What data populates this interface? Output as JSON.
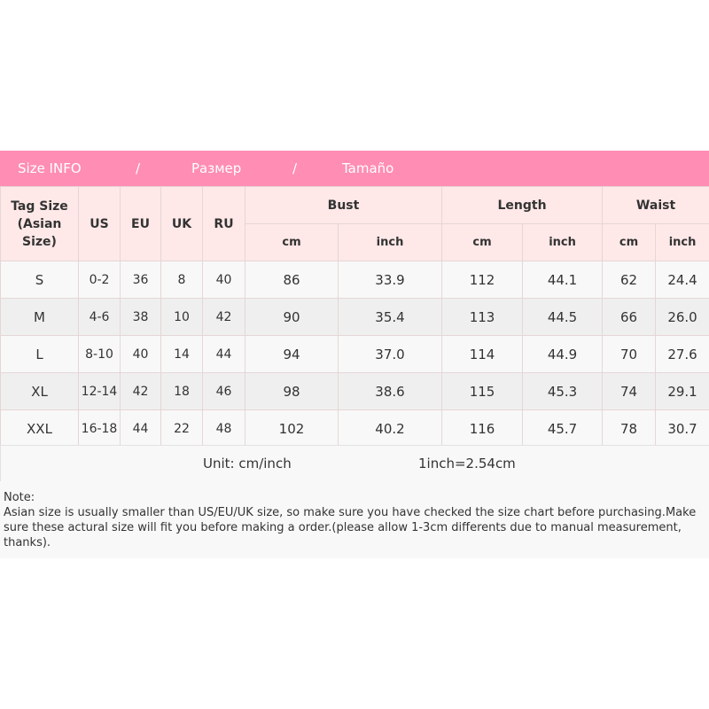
{
  "banner": {
    "parts": [
      "Size INFO",
      "/",
      "Размер",
      "/",
      "Tamaño"
    ],
    "color": "#ff8db4"
  },
  "header": {
    "tag_size": "Tag Size (Asian Size)",
    "us": "US",
    "eu": "EU",
    "uk": "UK",
    "ru": "RU",
    "bust": "Bust",
    "length": "Length",
    "waist": "Waist",
    "cm": "cm",
    "inch": "inch"
  },
  "rows": [
    [
      "S",
      "0-2",
      "36",
      "8",
      "40",
      "86",
      "33.9",
      "112",
      "44.1",
      "62",
      "24.4"
    ],
    [
      "M",
      "4-6",
      "38",
      "10",
      "42",
      "90",
      "35.4",
      "113",
      "44.5",
      "66",
      "26.0"
    ],
    [
      "L",
      "8-10",
      "40",
      "14",
      "44",
      "94",
      "37.0",
      "114",
      "44.9",
      "70",
      "27.6"
    ],
    [
      "XL",
      "12-14",
      "42",
      "18",
      "46",
      "98",
      "38.6",
      "115",
      "45.3",
      "74",
      "29.1"
    ],
    [
      "XXL",
      "16-18",
      "44",
      "22",
      "48",
      "102",
      "40.2",
      "116",
      "45.7",
      "78",
      "30.7"
    ]
  ],
  "unit": {
    "label": "Unit: cm/inch",
    "conversion": "1inch=2.54cm"
  },
  "note": {
    "title": "Note:",
    "text": "Asian size is usually smaller than US/EU/UK size, so make sure you have checked the size chart before purchasing.Make sure these actural size will fit you before making a order.(please allow 1-3cm differents due to manual measurement, thanks)."
  }
}
